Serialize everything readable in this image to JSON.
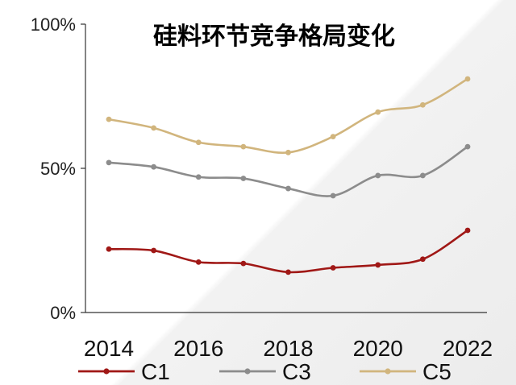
{
  "chart_data": {
    "type": "line",
    "title": "硅料环节竞争格局变化",
    "x": [
      2014,
      2015,
      2016,
      2017,
      2018,
      2019,
      2020,
      2021,
      2022
    ],
    "x_tick_labels": [
      "2014",
      "2016",
      "2018",
      "2020",
      "2022"
    ],
    "x_tick_values": [
      2014,
      2016,
      2018,
      2020,
      2022
    ],
    "y_tick_labels": [
      "0%",
      "50%",
      "100%"
    ],
    "y_tick_values": [
      0,
      50,
      100
    ],
    "ylim": [
      0,
      100
    ],
    "grid": false,
    "legend_position": "bottom",
    "series": [
      {
        "name": "C1",
        "color": "#a01816",
        "values": [
          22.0,
          21.5,
          17.5,
          17.0,
          14.0,
          15.5,
          16.5,
          18.5,
          28.5
        ]
      },
      {
        "name": "C3",
        "color": "#8c8c8c",
        "values": [
          52.0,
          50.5,
          47.0,
          46.5,
          43.0,
          40.5,
          47.5,
          47.5,
          57.5
        ]
      },
      {
        "name": "C5",
        "color": "#d1b57d",
        "values": [
          67.0,
          64.0,
          59.0,
          57.5,
          55.5,
          61.0,
          69.5,
          72.0,
          81.0
        ]
      }
    ]
  }
}
